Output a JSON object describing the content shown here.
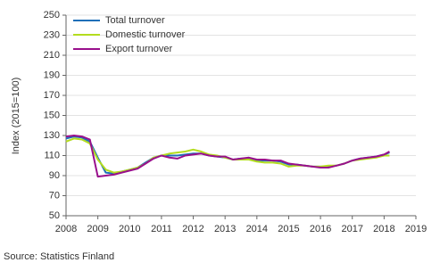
{
  "chart_data": {
    "type": "line",
    "y_label": "Index (2015=100)",
    "source": "Source: Statistics Finland",
    "x": [
      2008.0,
      2008.25,
      2008.5,
      2008.75,
      2009.0,
      2009.25,
      2009.5,
      2009.75,
      2010.0,
      2010.25,
      2010.5,
      2010.75,
      2011.0,
      2011.25,
      2011.5,
      2011.75,
      2012.0,
      2012.25,
      2012.5,
      2012.75,
      2013.0,
      2013.25,
      2013.5,
      2013.75,
      2014.0,
      2014.25,
      2014.5,
      2014.75,
      2015.0,
      2015.25,
      2015.5,
      2015.75,
      2016.0,
      2016.25,
      2016.5,
      2016.75,
      2017.0,
      2017.25,
      2017.5,
      2017.75,
      2018.0,
      2018.17
    ],
    "series": [
      {
        "name": "Total turnover",
        "color": "#1f6fb8",
        "values": [
          127,
          129,
          128,
          124,
          108,
          93,
          92,
          94,
          96,
          98,
          103,
          108,
          110,
          110,
          110,
          111,
          112,
          112,
          110,
          109,
          108,
          106,
          107,
          107,
          105,
          105,
          105,
          104,
          101,
          101,
          100,
          99,
          99,
          99,
          100,
          102,
          105,
          107,
          108,
          109,
          111,
          113
        ]
      },
      {
        "name": "Domestic turnover",
        "color": "#b3dc1e",
        "values": [
          124,
          127,
          126,
          122,
          106,
          96,
          93,
          94,
          96,
          98,
          102,
          108,
          110,
          112,
          113,
          114,
          116,
          114,
          111,
          110,
          108,
          106,
          106,
          106,
          104,
          103,
          103,
          102,
          99,
          100,
          100,
          99,
          99,
          100,
          100,
          102,
          105,
          106,
          107,
          108,
          110,
          110
        ]
      },
      {
        "name": "Export turnover",
        "color": "#990f8c",
        "values": [
          129,
          130,
          129,
          126,
          89,
          90,
          91,
          93,
          95,
          97,
          102,
          107,
          110,
          108,
          107,
          110,
          111,
          112,
          110,
          109,
          109,
          106,
          107,
          108,
          106,
          106,
          105,
          105,
          102,
          101,
          100,
          99,
          98,
          98,
          100,
          102,
          105,
          107,
          108,
          109,
          111,
          114
        ]
      }
    ],
    "xlim": [
      2008,
      2019
    ],
    "xticks": [
      2008,
      2009,
      2010,
      2011,
      2012,
      2013,
      2014,
      2015,
      2016,
      2017,
      2018,
      2019
    ],
    "ylim": [
      50,
      250
    ],
    "yticks": [
      50,
      70,
      90,
      110,
      130,
      150,
      170,
      190,
      210,
      230,
      250
    ],
    "grid": true,
    "legend": "upper left"
  }
}
